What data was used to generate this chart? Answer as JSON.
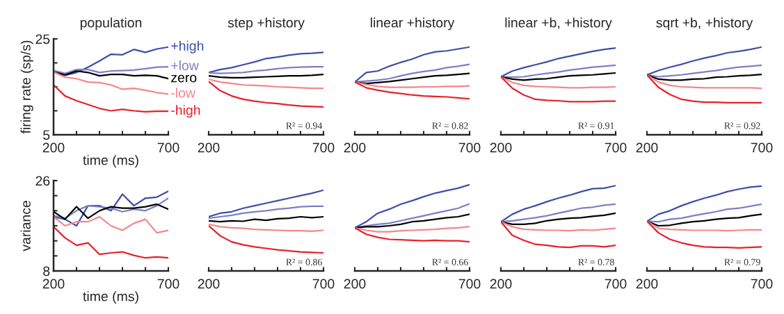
{
  "chart_data": [
    {
      "type": "line",
      "title": "population",
      "ylabel": "firing rate (sp/s)",
      "xlabel": "time (ms)",
      "x": [
        200,
        250,
        300,
        350,
        400,
        450,
        500,
        550,
        600,
        650,
        700
      ],
      "xlim": [
        200,
        700
      ],
      "xticks": [
        200,
        {
          "value": 300,
          "label": null
        },
        {
          "value": 400,
          "label": null
        },
        {
          "value": 500,
          "label": null
        },
        {
          "value": 600,
          "label": null
        },
        700
      ],
      "ylim": [
        5,
        25
      ],
      "yticks": [
        5,
        {
          "value": 10,
          "label": null
        },
        {
          "value": 15,
          "label": null
        },
        {
          "value": 20,
          "label": null
        },
        25
      ],
      "series": [
        {
          "name": "+high",
          "color": "#3b4fa8",
          "values": [
            18.3,
            17.4,
            18.0,
            19.1,
            20.4,
            21.8,
            21.7,
            22.8,
            22.2,
            22.9,
            23.3
          ]
        },
        {
          "name": "+low",
          "color": "#7b7fc8",
          "values": [
            18.4,
            17.8,
            18.6,
            18.6,
            18.0,
            18.3,
            18.4,
            18.5,
            18.8,
            19.1,
            19.2
          ]
        },
        {
          "name": "zero",
          "color": "#000000",
          "values": [
            18.1,
            17.5,
            18.3,
            18.0,
            17.3,
            17.6,
            17.6,
            17.3,
            17.4,
            17.3,
            16.7
          ]
        },
        {
          "name": "-low",
          "color": "#f4868a",
          "values": [
            18.1,
            17.0,
            16.7,
            16.0,
            15.9,
            15.4,
            14.5,
            14.7,
            14.3,
            13.8,
            13.5
          ]
        },
        {
          "name": "-high",
          "color": "#e8202a",
          "values": [
            15.4,
            13.1,
            12.1,
            11.3,
            10.5,
            10.0,
            10.3,
            10.0,
            9.8,
            9.9,
            9.9
          ]
        }
      ]
    },
    {
      "type": "line",
      "title": "step +history",
      "annotations": [
        "R² = 0.94"
      ],
      "tick_labels": "x",
      "x": [
        200,
        250,
        300,
        350,
        400,
        450,
        500,
        550,
        600,
        650,
        700
      ],
      "xlim": [
        200,
        700
      ],
      "xticks": [
        200,
        {
          "value": 300,
          "label": null
        },
        {
          "value": 400,
          "label": null
        },
        {
          "value": 500,
          "label": null
        },
        {
          "value": 600,
          "label": null
        },
        700
      ],
      "ylim": [
        5,
        25
      ],
      "series": [
        {
          "color": "#3b4fa8",
          "values": [
            18.0,
            18.6,
            19.0,
            19.6,
            20.2,
            20.9,
            21.2,
            21.6,
            21.9,
            22.0,
            22.2
          ]
        },
        {
          "color": "#7b7fc8",
          "values": [
            17.9,
            17.8,
            17.9,
            18.0,
            18.3,
            18.5,
            18.8,
            19.0,
            19.1,
            19.2,
            19.2
          ]
        },
        {
          "color": "#000000",
          "values": [
            17.3,
            17.0,
            16.9,
            16.9,
            17.0,
            17.1,
            17.2,
            17.3,
            17.3,
            17.4,
            17.6
          ]
        },
        {
          "color": "#f4868a",
          "values": [
            16.6,
            16.0,
            15.7,
            15.4,
            15.3,
            15.2,
            15.0,
            14.9,
            14.8,
            14.7,
            14.7
          ]
        },
        {
          "color": "#e8202a",
          "values": [
            16.1,
            14.2,
            13.1,
            12.4,
            12.0,
            11.7,
            11.5,
            11.2,
            11.0,
            10.9,
            10.8
          ]
        }
      ]
    },
    {
      "type": "line",
      "title": "linear +history",
      "annotations": [
        "R² = 0.82"
      ],
      "tick_labels": "x",
      "x": [
        200,
        250,
        300,
        350,
        400,
        450,
        500,
        550,
        600,
        650,
        700
      ],
      "xlim": [
        200,
        700
      ],
      "xticks": [
        200,
        {
          "value": 300,
          "label": null
        },
        {
          "value": 400,
          "label": null
        },
        {
          "value": 500,
          "label": null
        },
        {
          "value": 600,
          "label": null
        },
        700
      ],
      "ylim": [
        5,
        25
      ],
      "series": [
        {
          "color": "#3b4fa8",
          "values": [
            16.0,
            18.0,
            18.3,
            19.3,
            20.1,
            20.8,
            21.7,
            22.3,
            22.5,
            22.9,
            23.3
          ]
        },
        {
          "color": "#7b7fc8",
          "values": [
            16.0,
            16.2,
            16.4,
            16.7,
            17.3,
            17.8,
            18.2,
            18.5,
            19.0,
            19.3,
            19.7
          ]
        },
        {
          "color": "#000000",
          "values": [
            16.0,
            15.7,
            15.9,
            16.1,
            16.4,
            16.7,
            17.0,
            17.3,
            17.4,
            17.6,
            17.8
          ]
        },
        {
          "color": "#f4868a",
          "values": [
            16.0,
            15.5,
            15.1,
            14.9,
            14.9,
            14.9,
            15.0,
            15.0,
            15.1,
            15.1,
            15.2
          ]
        },
        {
          "color": "#e8202a",
          "values": [
            16.0,
            14.8,
            14.3,
            13.9,
            13.6,
            13.3,
            13.1,
            13.0,
            12.9,
            12.7,
            12.5
          ]
        }
      ]
    },
    {
      "type": "line",
      "title": "linear +b, +history",
      "annotations": [
        "R² = 0.91"
      ],
      "tick_labels": "x",
      "x": [
        200,
        250,
        300,
        350,
        400,
        450,
        500,
        550,
        600,
        650,
        700
      ],
      "xlim": [
        200,
        700
      ],
      "xticks": [
        200,
        {
          "value": 300,
          "label": null
        },
        {
          "value": 400,
          "label": null
        },
        {
          "value": 500,
          "label": null
        },
        {
          "value": 600,
          "label": null
        },
        700
      ],
      "ylim": [
        5,
        25
      ],
      "series": [
        {
          "color": "#3b4fa8",
          "values": [
            17.1,
            18.3,
            19.0,
            19.6,
            20.2,
            20.9,
            21.4,
            21.9,
            22.4,
            22.8,
            23.1
          ]
        },
        {
          "color": "#7b7fc8",
          "values": [
            17.1,
            17.0,
            17.1,
            17.5,
            17.8,
            18.1,
            18.5,
            18.8,
            19.1,
            19.3,
            19.5
          ]
        },
        {
          "color": "#000000",
          "values": [
            17.1,
            16.6,
            16.4,
            16.6,
            16.7,
            17.0,
            17.3,
            17.4,
            17.5,
            17.7,
            17.9
          ]
        },
        {
          "color": "#f4868a",
          "values": [
            17.1,
            15.9,
            15.3,
            15.1,
            15.0,
            14.9,
            14.8,
            14.8,
            14.9,
            14.9,
            15.0
          ]
        },
        {
          "color": "#e8202a",
          "values": [
            17.1,
            14.7,
            13.3,
            12.4,
            12.2,
            12.1,
            11.9,
            11.9,
            11.9,
            12.0,
            12.0
          ]
        }
      ]
    },
    {
      "type": "line",
      "title": "sqrt +b, +history",
      "annotations": [
        "R² = 0.92"
      ],
      "tick_labels": "x",
      "x": [
        200,
        250,
        300,
        350,
        400,
        450,
        500,
        550,
        600,
        650,
        700
      ],
      "xlim": [
        200,
        700
      ],
      "xticks": [
        200,
        {
          "value": 300,
          "label": null
        },
        {
          "value": 400,
          "label": null
        },
        {
          "value": 500,
          "label": null
        },
        {
          "value": 600,
          "label": null
        },
        700
      ],
      "ylim": [
        5,
        25
      ],
      "series": [
        {
          "color": "#3b4fa8",
          "values": [
            17.5,
            18.4,
            19.1,
            19.7,
            20.4,
            21.0,
            21.5,
            22.1,
            22.4,
            22.8,
            23.3
          ]
        },
        {
          "color": "#7b7fc8",
          "values": [
            17.5,
            17.1,
            17.3,
            17.5,
            17.8,
            18.1,
            18.4,
            18.8,
            19.1,
            19.3,
            19.5
          ]
        },
        {
          "color": "#000000",
          "values": [
            17.5,
            16.6,
            16.4,
            16.4,
            16.6,
            16.7,
            17.0,
            17.1,
            17.3,
            17.4,
            17.6
          ]
        },
        {
          "color": "#f4868a",
          "values": [
            17.5,
            16.0,
            15.3,
            15.0,
            14.9,
            14.8,
            14.8,
            14.8,
            14.8,
            14.8,
            14.7
          ]
        },
        {
          "color": "#e8202a",
          "values": [
            17.5,
            14.9,
            13.4,
            12.4,
            12.0,
            11.8,
            11.8,
            11.7,
            11.7,
            11.7,
            11.7
          ]
        }
      ]
    },
    {
      "type": "line",
      "ylabel": "variance",
      "xlabel": "time (ms)",
      "x": [
        200,
        250,
        300,
        350,
        400,
        450,
        500,
        550,
        600,
        650,
        700
      ],
      "xlim": [
        200,
        700
      ],
      "xticks": [
        200,
        {
          "value": 300,
          "label": null
        },
        {
          "value": 400,
          "label": null
        },
        {
          "value": 500,
          "label": null
        },
        {
          "value": 600,
          "label": null
        },
        700
      ],
      "ylim": [
        8,
        26
      ],
      "yticks": [
        8,
        {
          "value": 11,
          "label": null
        },
        {
          "value": 14,
          "label": null
        },
        {
          "value": 17,
          "label": null
        },
        {
          "value": 20,
          "label": null
        },
        {
          "value": 23,
          "label": null
        },
        26
      ],
      "series": [
        {
          "color": "#3b4fa8",
          "values": [
            18.8,
            18.3,
            17.0,
            21.0,
            21.0,
            20.0,
            23.3,
            21.0,
            22.5,
            22.7,
            23.9
          ]
        },
        {
          "color": "#7b7fc8",
          "values": [
            19.0,
            18.5,
            20.0,
            21.0,
            20.8,
            20.5,
            19.8,
            20.3,
            20.0,
            21.0,
            22.5
          ]
        },
        {
          "color": "#000000",
          "values": [
            19.8,
            18.3,
            20.8,
            18.5,
            20.0,
            20.8,
            20.5,
            20.5,
            20.8,
            21.3,
            20.3
          ]
        },
        {
          "color": "#f4868a",
          "values": [
            18.8,
            17.0,
            17.8,
            17.8,
            18.8,
            17.0,
            16.1,
            17.5,
            18.3,
            15.6,
            16.1
          ]
        },
        {
          "color": "#e8202a",
          "values": [
            16.8,
            14.6,
            13.1,
            13.6,
            11.3,
            11.6,
            11.8,
            11.1,
            10.6,
            10.8,
            10.6
          ]
        }
      ]
    },
    {
      "type": "line",
      "annotations": [
        "R² = 0.86"
      ],
      "tick_labels": "x",
      "x": [
        200,
        250,
        300,
        350,
        400,
        450,
        500,
        550,
        600,
        650,
        700
      ],
      "xlim": [
        200,
        700
      ],
      "xticks": [
        200,
        {
          "value": 300,
          "label": null
        },
        {
          "value": 400,
          "label": null
        },
        {
          "value": 500,
          "label": null
        },
        {
          "value": 600,
          "label": null
        },
        700
      ],
      "ylim": [
        8,
        26
      ],
      "series": [
        {
          "color": "#3b4fa8",
          "values": [
            18.8,
            19.5,
            19.8,
            20.5,
            21.0,
            21.5,
            22.0,
            22.5,
            23.0,
            23.5,
            24.1
          ]
        },
        {
          "color": "#7b7fc8",
          "values": [
            18.5,
            18.8,
            19.1,
            19.5,
            19.8,
            20.0,
            20.3,
            20.5,
            20.8,
            20.9,
            20.9
          ]
        },
        {
          "color": "#000000",
          "values": [
            18.0,
            17.8,
            18.0,
            17.9,
            18.3,
            18.1,
            18.4,
            18.5,
            18.8,
            18.6,
            18.8
          ]
        },
        {
          "color": "#f4868a",
          "values": [
            17.3,
            16.8,
            16.6,
            16.5,
            16.3,
            16.2,
            16.1,
            16.0,
            16.0,
            15.9,
            16.1
          ]
        },
        {
          "color": "#e8202a",
          "values": [
            17.0,
            15.0,
            13.8,
            13.2,
            12.8,
            12.5,
            12.2,
            12.0,
            11.8,
            11.7,
            11.6
          ]
        }
      ]
    },
    {
      "type": "line",
      "annotations": [
        "R² = 0.66"
      ],
      "tick_labels": "x",
      "x": [
        200,
        250,
        300,
        350,
        400,
        450,
        500,
        550,
        600,
        650,
        700
      ],
      "xlim": [
        200,
        700
      ],
      "xticks": [
        200,
        {
          "value": 300,
          "label": null
        },
        {
          "value": 400,
          "label": null
        },
        {
          "value": 500,
          "label": null
        },
        {
          "value": 600,
          "label": null
        },
        700
      ],
      "ylim": [
        8,
        26
      ],
      "series": [
        {
          "color": "#3b4fa8",
          "values": [
            16.6,
            17.8,
            19.5,
            20.3,
            21.3,
            22.0,
            22.8,
            23.5,
            24.0,
            24.5,
            25.2
          ]
        },
        {
          "color": "#7b7fc8",
          "values": [
            16.6,
            17.0,
            17.3,
            17.5,
            18.0,
            18.5,
            19.0,
            19.5,
            20.0,
            20.5,
            21.4
          ]
        },
        {
          "color": "#000000",
          "values": [
            16.6,
            16.8,
            16.8,
            17.0,
            17.3,
            17.8,
            18.0,
            18.3,
            18.6,
            18.8,
            19.3
          ]
        },
        {
          "color": "#f4868a",
          "values": [
            16.6,
            16.1,
            15.8,
            15.8,
            16.0,
            16.1,
            16.2,
            16.3,
            16.5,
            16.6,
            16.8
          ]
        },
        {
          "color": "#e8202a",
          "values": [
            16.6,
            15.3,
            14.7,
            14.3,
            14.2,
            14.1,
            14.0,
            14.1,
            14.0,
            14.0,
            13.8
          ]
        }
      ]
    },
    {
      "type": "line",
      "annotations": [
        "R² = 0.78"
      ],
      "tick_labels": "x",
      "x": [
        200,
        250,
        300,
        350,
        400,
        450,
        500,
        550,
        600,
        650,
        700
      ],
      "xlim": [
        200,
        700
      ],
      "xticks": [
        200,
        {
          "value": 300,
          "label": null
        },
        {
          "value": 400,
          "label": null
        },
        {
          "value": 500,
          "label": null
        },
        {
          "value": 600,
          "label": null
        },
        700
      ],
      "ylim": [
        8,
        26
      ],
      "series": [
        {
          "color": "#3b4fa8",
          "values": [
            17.8,
            19.3,
            20.3,
            21.0,
            21.8,
            22.5,
            23.1,
            23.8,
            24.4,
            24.5,
            25.0
          ]
        },
        {
          "color": "#7b7fc8",
          "values": [
            17.8,
            18.0,
            18.3,
            18.6,
            19.0,
            19.5,
            20.0,
            20.5,
            20.7,
            21.1,
            21.3
          ]
        },
        {
          "color": "#000000",
          "values": [
            17.8,
            17.3,
            17.3,
            17.5,
            18.0,
            18.3,
            18.5,
            18.6,
            18.9,
            19.1,
            19.5
          ]
        },
        {
          "color": "#f4868a",
          "values": [
            17.8,
            16.8,
            16.3,
            16.2,
            16.1,
            16.1,
            16.0,
            16.2,
            16.1,
            16.3,
            16.5
          ]
        },
        {
          "color": "#e8202a",
          "values": [
            17.8,
            15.1,
            14.1,
            13.3,
            13.1,
            12.8,
            12.7,
            13.0,
            13.0,
            12.8,
            13.1
          ]
        }
      ]
    },
    {
      "type": "line",
      "annotations": [
        "R² = 0.79"
      ],
      "tick_labels": "x",
      "x": [
        200,
        250,
        300,
        350,
        400,
        450,
        500,
        550,
        600,
        650,
        700
      ],
      "xlim": [
        200,
        700
      ],
      "xticks": [
        200,
        {
          "value": 300,
          "label": null
        },
        {
          "value": 400,
          "label": null
        },
        {
          "value": 500,
          "label": null
        },
        {
          "value": 600,
          "label": null
        },
        700
      ],
      "ylim": [
        8,
        26
      ],
      "series": [
        {
          "color": "#3b4fa8",
          "values": [
            17.9,
            19.3,
            20.0,
            21.0,
            21.8,
            22.5,
            23.1,
            23.8,
            24.3,
            24.7,
            24.9
          ]
        },
        {
          "color": "#7b7fc8",
          "values": [
            17.9,
            17.8,
            18.3,
            18.5,
            19.0,
            19.4,
            19.8,
            20.3,
            20.5,
            20.9,
            21.3
          ]
        },
        {
          "color": "#000000",
          "values": [
            17.9,
            17.0,
            17.1,
            17.5,
            17.8,
            18.0,
            18.3,
            18.5,
            18.6,
            19.0,
            19.3
          ]
        },
        {
          "color": "#f4868a",
          "values": [
            17.9,
            16.5,
            16.3,
            16.2,
            16.1,
            16.1,
            16.1,
            16.0,
            16.1,
            16.2,
            16.2
          ]
        },
        {
          "color": "#e8202a",
          "values": [
            17.9,
            15.6,
            14.3,
            13.6,
            13.1,
            12.8,
            12.7,
            12.7,
            12.6,
            12.7,
            12.8
          ]
        }
      ]
    }
  ]
}
